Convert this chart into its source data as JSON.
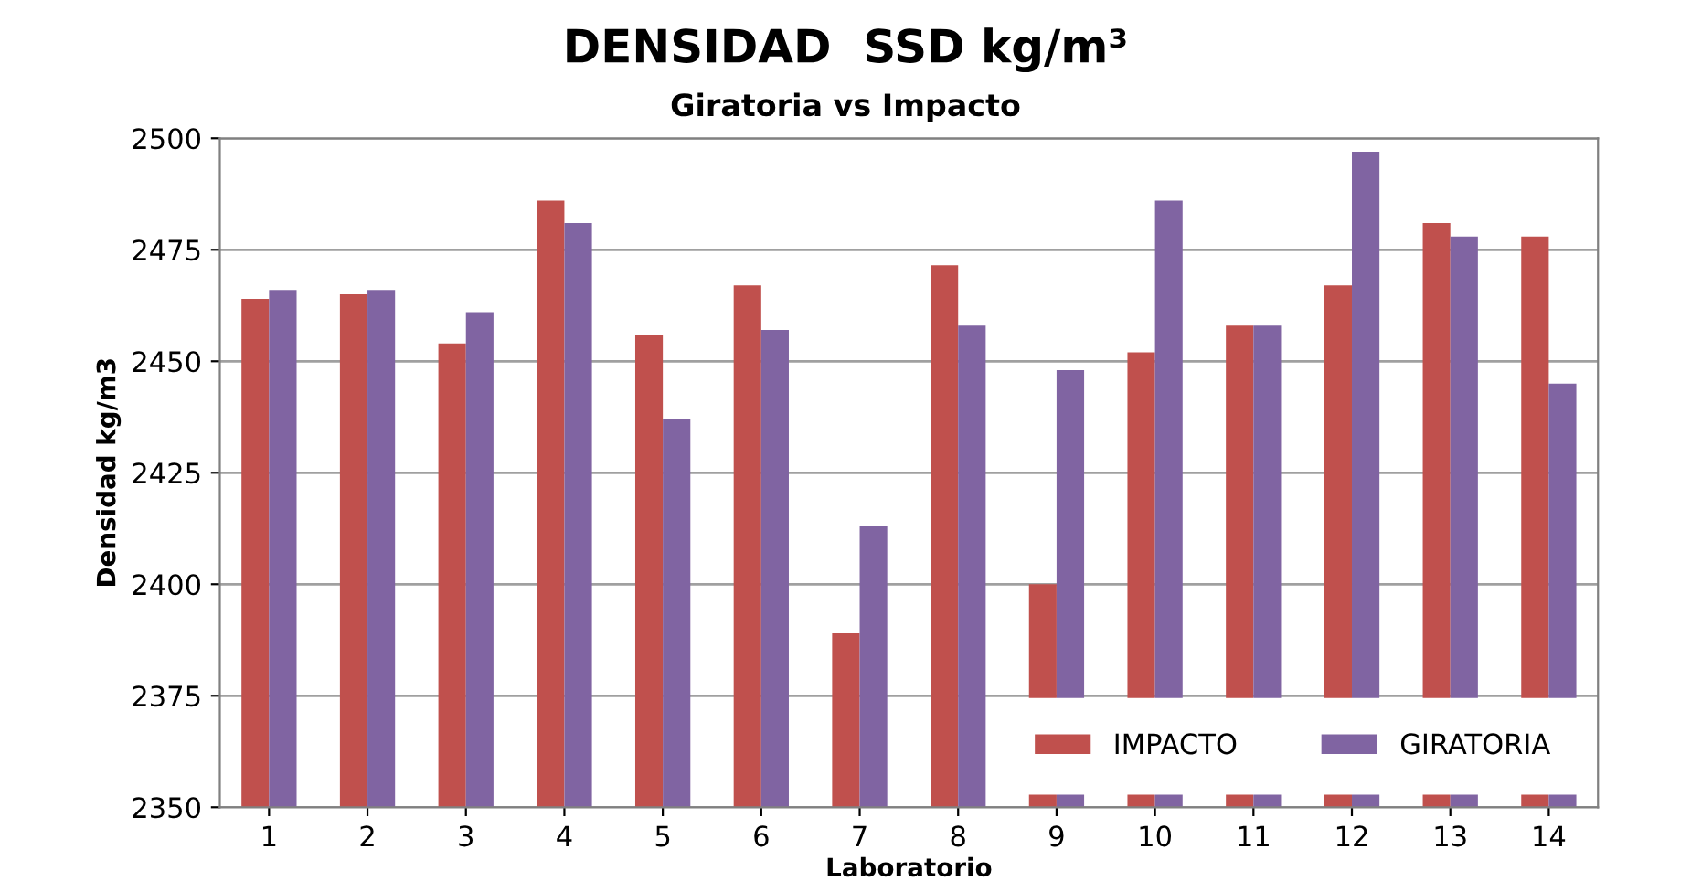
{
  "chart_data": {
    "type": "bar",
    "title": "DENSIDAD  SSD kg/m³",
    "subtitle": "Giratoria vs Impacto",
    "xlabel": "Laboratorio",
    "ylabel": "Densidad kg/m3",
    "categories": [
      "1",
      "2",
      "3",
      "4",
      "5",
      "6",
      "7",
      "8",
      "9",
      "10",
      "11",
      "12",
      "13",
      "14"
    ],
    "series": [
      {
        "name": "IMPACTO",
        "color": "#c0504d",
        "values": [
          2464,
          2465,
          2454,
          2486,
          2456,
          2467,
          2389,
          2471.5,
          2400,
          2452,
          2458,
          2467,
          2481,
          2478
        ]
      },
      {
        "name": "GIRATORIA",
        "color": "#8064a2",
        "values": [
          2466,
          2466,
          2461,
          2481,
          2437,
          2457,
          2413,
          2458,
          2448,
          2486,
          2458,
          2497,
          2478,
          2445
        ]
      }
    ],
    "ylim": [
      2350,
      2500
    ],
    "yticks": [
      2350,
      2375,
      2400,
      2425,
      2450,
      2475,
      2500
    ],
    "grid": "y",
    "legend": "bottom right"
  }
}
